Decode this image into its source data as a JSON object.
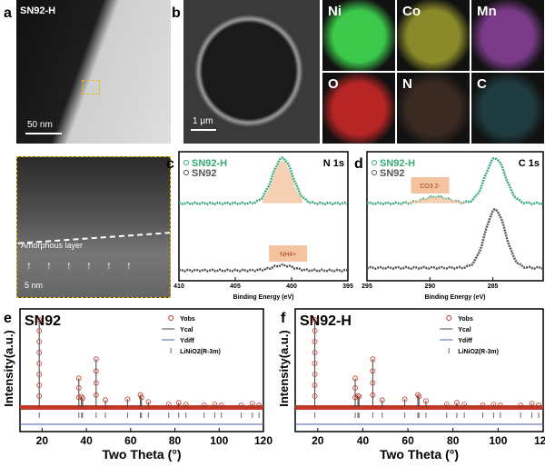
{
  "panel_a": {
    "letter": "a",
    "sample": "SN92-H",
    "scale_top": "50 nm",
    "inset_label": "Amorphous layer",
    "scale_inset": "5 nm"
  },
  "panel_b": {
    "letter": "b",
    "scale": "1 μm",
    "maps": [
      {
        "element": "Ni",
        "color": "#3cc84a"
      },
      {
        "element": "Co",
        "color": "#8a8a2a"
      },
      {
        "element": "Mn",
        "color": "#7a3a88"
      },
      {
        "element": "O",
        "color": "#b82525"
      },
      {
        "element": "N",
        "color": "#3a2a22"
      },
      {
        "element": "C",
        "color": "#1f3c40"
      }
    ]
  },
  "colors": {
    "sn92h": "#3aa878",
    "sn92": "#555555",
    "fill": "#f4c4a0",
    "xrd": "#c0392b",
    "diff": "#4a5ea8"
  },
  "chart_data": [
    {
      "panel": "c",
      "type": "line",
      "title": "N 1s",
      "xlabel": "Binding Energy (eV)",
      "xlim": [
        410,
        395
      ],
      "ticks": [
        "410",
        "405",
        "400",
        "395"
      ],
      "legend": [
        "SN92-H",
        "SN92"
      ],
      "annotation": "NH4+",
      "peak_center": 400.8,
      "series": [
        {
          "name": "SN92-H",
          "baseline": 0.6,
          "peak": 0.95
        },
        {
          "name": "SN92",
          "baseline": 0.08,
          "peak": 0.12
        }
      ]
    },
    {
      "panel": "d",
      "type": "line",
      "title": "C 1s",
      "xlabel": "Binding Energy (eV)",
      "xlim": [
        295,
        281
      ],
      "ticks": [
        "295",
        "290",
        "285"
      ],
      "legend": [
        "SN92-H",
        "SN92"
      ],
      "annotation": "CO3 2-",
      "peak_center": 284.8,
      "carbonate_center": 289.5,
      "series": [
        {
          "name": "SN92-H",
          "baseline": 0.6,
          "peak": 0.95
        },
        {
          "name": "SN92",
          "baseline": 0.1,
          "peak": 0.55
        }
      ]
    },
    {
      "panel": "e",
      "type": "line",
      "title": "SN92",
      "xlabel": "Two Theta (°)",
      "ylabel": "Intensity(a.u.)",
      "xlim": [
        10,
        120
      ],
      "ticks": [
        "20",
        "40",
        "60",
        "80",
        "100",
        "120"
      ],
      "legend": [
        "Yobs",
        "Ycal",
        "Ydiff",
        "LiNiO2(R-3m)"
      ],
      "peaks": [
        [
          18.7,
          1.0
        ],
        [
          36.6,
          0.33
        ],
        [
          37.8,
          0.12
        ],
        [
          38.3,
          0.1
        ],
        [
          44.4,
          0.55
        ],
        [
          48.6,
          0.08
        ],
        [
          58.6,
          0.09
        ],
        [
          64.4,
          0.14
        ],
        [
          64.9,
          0.11
        ],
        [
          68.0,
          0.06
        ],
        [
          77.2,
          0.03
        ],
        [
          81.7,
          0.05
        ],
        [
          85.0,
          0.03
        ],
        [
          93.2,
          0.02
        ],
        [
          98.0,
          0.03
        ],
        [
          101,
          0.02
        ],
        [
          110,
          0.02
        ],
        [
          115,
          0.04
        ],
        [
          118,
          0.02
        ]
      ]
    },
    {
      "panel": "f",
      "type": "line",
      "title": "SN92-H",
      "xlabel": "Two Theta (°)",
      "ylabel": "Intensity(a.u.)",
      "xlim": [
        10,
        120
      ],
      "ticks": [
        "20",
        "40",
        "60",
        "80",
        "100",
        "120"
      ],
      "legend": [
        "Yobs",
        "Ycal",
        "Ydiff",
        "LiNiO2(R-3m)"
      ],
      "peaks": [
        [
          18.7,
          1.0
        ],
        [
          36.6,
          0.33
        ],
        [
          37.8,
          0.13
        ],
        [
          38.3,
          0.12
        ],
        [
          44.4,
          0.55
        ],
        [
          48.6,
          0.08
        ],
        [
          58.6,
          0.09
        ],
        [
          64.4,
          0.14
        ],
        [
          64.9,
          0.12
        ],
        [
          68.0,
          0.07
        ],
        [
          77.2,
          0.03
        ],
        [
          81.7,
          0.05
        ],
        [
          85.0,
          0.03
        ],
        [
          93.2,
          0.02
        ],
        [
          98.0,
          0.03
        ],
        [
          101,
          0.02
        ],
        [
          110,
          0.02
        ],
        [
          115,
          0.04
        ],
        [
          118,
          0.02
        ]
      ]
    }
  ]
}
